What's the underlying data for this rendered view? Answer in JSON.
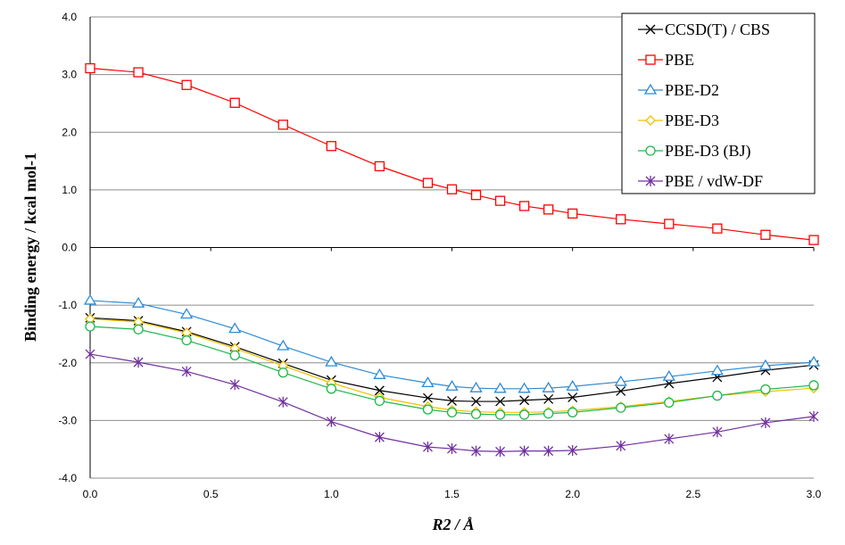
{
  "chart_data": {
    "type": "line",
    "xlabel": "R2 / Å",
    "ylabel": "Binding energy / kcal mol-1",
    "xlim": [
      0.0,
      3.0
    ],
    "ylim": [
      -4.0,
      4.0
    ],
    "xticks": [
      "0.0",
      "0.5",
      "1.0",
      "1.5",
      "2.0",
      "2.5",
      "3.0"
    ],
    "yticks": [
      "4.0",
      "3.0",
      "2.0",
      "1.0",
      "0.0",
      "-1.0",
      "-2.0",
      "-3.0",
      "-4.0"
    ],
    "grid": "horizontal",
    "legend_position": "top-right",
    "x": [
      0.0,
      0.2,
      0.4,
      0.6,
      0.8,
      1.0,
      1.2,
      1.4,
      1.5,
      1.6,
      1.7,
      1.8,
      1.9,
      2.0,
      2.2,
      2.4,
      2.6,
      2.8,
      3.0
    ],
    "series": [
      {
        "name": "CCSD(T) / CBS",
        "color": "#000000",
        "marker": "x",
        "values": [
          -1.22,
          -1.27,
          -1.46,
          -1.72,
          -2.01,
          -2.3,
          -2.48,
          -2.61,
          -2.66,
          -2.67,
          -2.67,
          -2.65,
          -2.63,
          -2.6,
          -2.49,
          -2.36,
          -2.25,
          -2.13,
          -2.04
        ]
      },
      {
        "name": "PBE",
        "color": "#ff0000",
        "marker": "square",
        "values": [
          3.11,
          3.04,
          2.82,
          2.51,
          2.13,
          1.76,
          1.41,
          1.12,
          1.01,
          0.91,
          0.81,
          0.72,
          0.66,
          0.59,
          0.49,
          0.41,
          0.33,
          0.22,
          0.13
        ]
      },
      {
        "name": "PBE-D2",
        "color": "#2e8bd6",
        "marker": "triangle",
        "values": [
          -0.92,
          -0.97,
          -1.16,
          -1.41,
          -1.71,
          -1.99,
          -2.21,
          -2.35,
          -2.41,
          -2.44,
          -2.45,
          -2.45,
          -2.44,
          -2.41,
          -2.33,
          -2.24,
          -2.14,
          -2.05,
          -1.99
        ]
      },
      {
        "name": "PBE-D3",
        "color": "#f0c000",
        "marker": "diamond",
        "values": [
          -1.24,
          -1.29,
          -1.48,
          -1.75,
          -2.05,
          -2.35,
          -2.6,
          -2.76,
          -2.82,
          -2.85,
          -2.86,
          -2.86,
          -2.85,
          -2.83,
          -2.76,
          -2.67,
          -2.57,
          -2.5,
          -2.44
        ]
      },
      {
        "name": "PBE-D3 (BJ)",
        "color": "#1fb84a",
        "marker": "circle",
        "values": [
          -1.37,
          -1.42,
          -1.61,
          -1.87,
          -2.17,
          -2.45,
          -2.66,
          -2.81,
          -2.86,
          -2.89,
          -2.9,
          -2.9,
          -2.88,
          -2.86,
          -2.78,
          -2.69,
          -2.57,
          -2.46,
          -2.39
        ]
      },
      {
        "name": "PBE / vdW-DF",
        "color": "#7030a0",
        "marker": "asterisk",
        "values": [
          -1.85,
          -1.99,
          -2.15,
          -2.38,
          -2.68,
          -3.02,
          -3.29,
          -3.46,
          -3.49,
          -3.53,
          -3.54,
          -3.53,
          -3.53,
          -3.52,
          -3.44,
          -3.32,
          -3.2,
          -3.04,
          -2.93
        ]
      }
    ]
  }
}
